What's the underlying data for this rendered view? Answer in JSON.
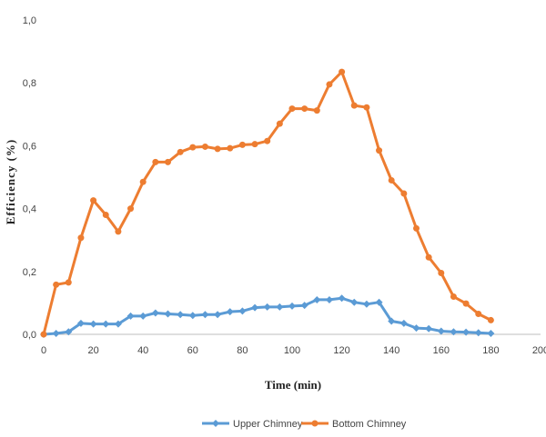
{
  "chart_data": {
    "type": "line",
    "title": "",
    "xlabel": "Time (min)",
    "ylabel": "Efficiency  (%)",
    "xlim": [
      0,
      200
    ],
    "ylim": [
      0,
      1.0
    ],
    "x_ticks": [
      "0",
      "20",
      "40",
      "60",
      "80",
      "100",
      "120",
      "140",
      "160",
      "180",
      "200"
    ],
    "y_ticks": [
      "0,0",
      "0,2",
      "0,4",
      "0,6",
      "0,8",
      "1,0"
    ],
    "grid": false,
    "legend_position": "bottom",
    "series": [
      {
        "name": "Upper Chimney",
        "color": "#5B9BD5",
        "x": [
          0,
          5,
          10,
          15,
          20,
          25,
          30,
          35,
          40,
          45,
          50,
          55,
          60,
          65,
          70,
          75,
          80,
          85,
          90,
          95,
          100,
          105,
          110,
          115,
          120,
          125,
          130,
          135,
          140,
          145,
          150,
          155,
          160,
          165,
          170,
          175,
          180
        ],
        "values": [
          0.0,
          0.003,
          0.008,
          0.035,
          0.033,
          0.033,
          0.033,
          0.058,
          0.058,
          0.068,
          0.065,
          0.063,
          0.06,
          0.063,
          0.063,
          0.072,
          0.074,
          0.085,
          0.087,
          0.087,
          0.09,
          0.092,
          0.11,
          0.11,
          0.115,
          0.102,
          0.096,
          0.102,
          0.042,
          0.035,
          0.02,
          0.018,
          0.01,
          0.008,
          0.007,
          0.005,
          0.003
        ]
      },
      {
        "name": "Bottom Chimney",
        "color": "#ED7D31",
        "x": [
          0,
          5,
          10,
          15,
          20,
          25,
          30,
          35,
          40,
          45,
          50,
          55,
          60,
          65,
          70,
          75,
          80,
          85,
          90,
          95,
          100,
          105,
          110,
          115,
          120,
          125,
          130,
          135,
          140,
          145,
          150,
          155,
          160,
          165,
          170,
          175,
          180
        ],
        "values": [
          0.0,
          0.158,
          0.165,
          0.307,
          0.426,
          0.38,
          0.327,
          0.4,
          0.485,
          0.548,
          0.548,
          0.58,
          0.595,
          0.597,
          0.59,
          0.592,
          0.603,
          0.605,
          0.615,
          0.67,
          0.718,
          0.718,
          0.712,
          0.795,
          0.835,
          0.728,
          0.722,
          0.585,
          0.49,
          0.448,
          0.337,
          0.245,
          0.195,
          0.12,
          0.098,
          0.065,
          0.045
        ]
      }
    ]
  }
}
